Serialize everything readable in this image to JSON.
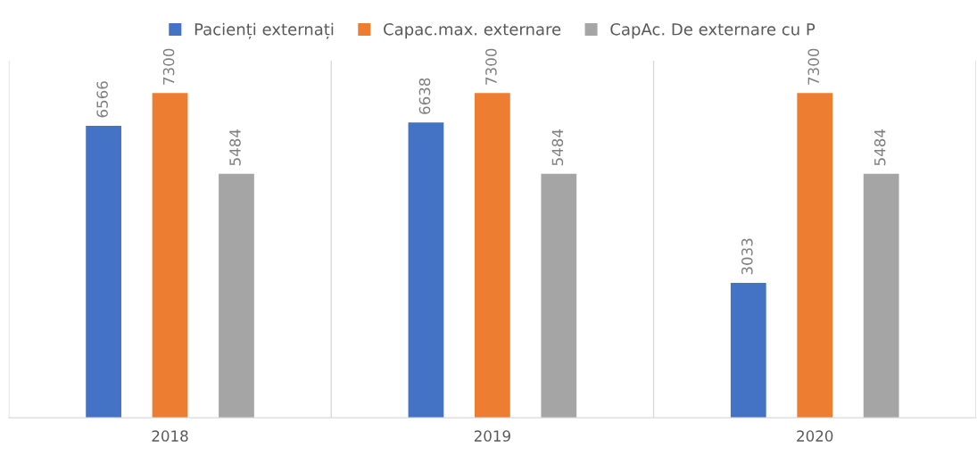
{
  "chart_data": {
    "type": "bar",
    "categories": [
      "2018",
      "2019",
      "2020"
    ],
    "series": [
      {
        "name": "Pacienți externați",
        "color": "#4472c4",
        "values": [
          6566,
          6638,
          3033
        ]
      },
      {
        "name": "Capac.max. externare",
        "color": "#ed7d31",
        "values": [
          7300,
          7300,
          7300
        ]
      },
      {
        "name": "CapAc. De externare cu P",
        "color": "#a5a5a5",
        "values": [
          5484,
          5484,
          5484
        ]
      }
    ],
    "data_labels": true,
    "legend": "top",
    "grid": "x"
  }
}
